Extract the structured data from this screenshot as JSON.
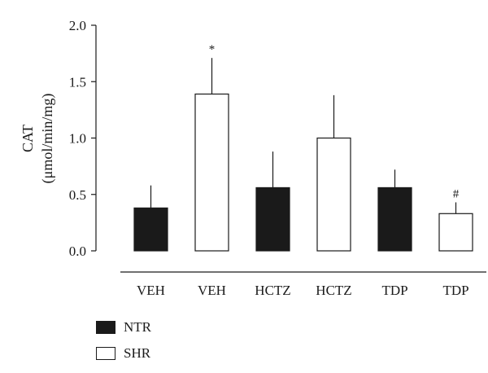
{
  "chart_data": {
    "type": "bar",
    "categories": [
      "VEH",
      "VEH",
      "HCTZ",
      "HCTZ",
      "TDP",
      "TDP"
    ],
    "values": [
      0.38,
      1.39,
      0.56,
      1.0,
      0.56,
      0.33
    ],
    "errors": [
      0.2,
      0.32,
      0.32,
      0.38,
      0.16,
      0.1
    ],
    "groups": [
      "NTR",
      "SHR",
      "NTR",
      "SHR",
      "NTR",
      "SHR"
    ],
    "annotations": [
      "",
      "*",
      "",
      "",
      "",
      "#"
    ],
    "ylabel_line1": "CAT",
    "ylabel_line2": "(μmol/min/mg)",
    "ylim": [
      0,
      2.0
    ],
    "yticks": [
      "0.0",
      "0.5",
      "1.0",
      "1.5",
      "2.0"
    ],
    "legend": [
      {
        "name": "NTR",
        "fill": "#1a1a1a"
      },
      {
        "name": "SHR",
        "fill": "#ffffff"
      }
    ],
    "legend_position": "bottom-left",
    "grid": false
  }
}
